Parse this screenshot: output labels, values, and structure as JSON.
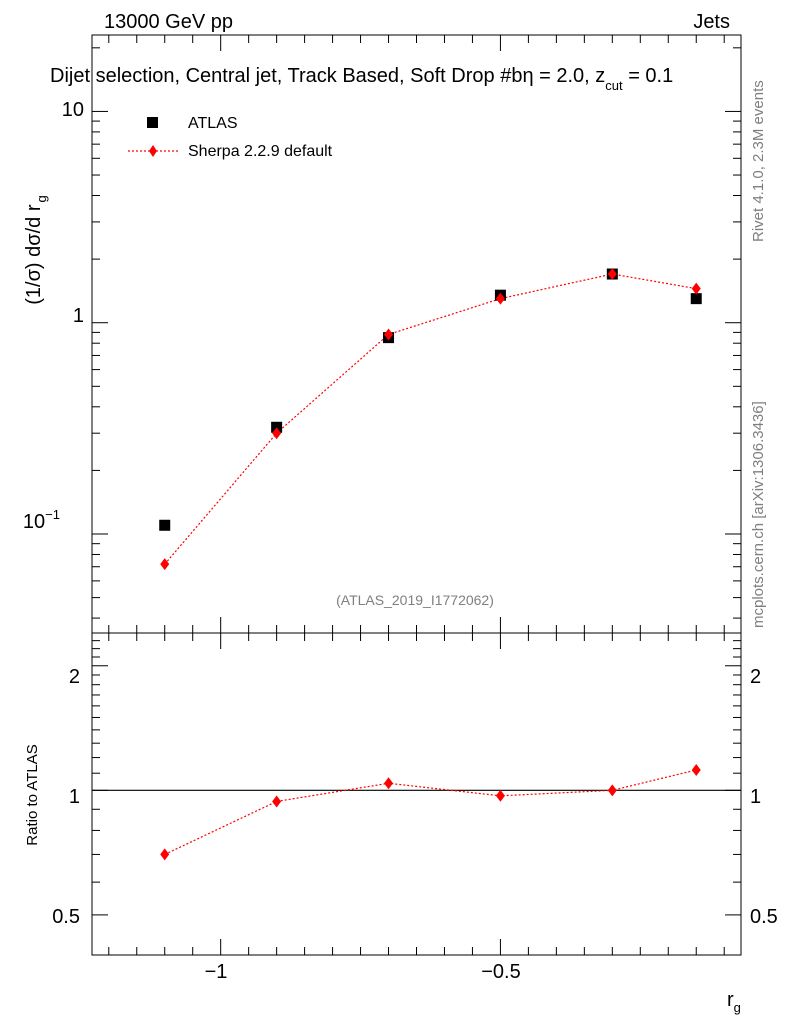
{
  "header": {
    "energy_label": "13000 GeV pp",
    "process_label": "Jets"
  },
  "main_plot": {
    "title": "Dijet selection, Central jet, Track Based, Soft Drop #b",
    "title_suffix_eta": "η = 2.0, z",
    "title_suffix_cut_sub": "cut",
    "title_suffix_value": " = 0.1",
    "ylabel": "(1/σ) dσ/d r",
    "ylabel_sub": "g",
    "ytick_labels": {
      "ten": "10",
      "one": "1",
      "tenth_base": "10",
      "tenth_exp": "−1"
    },
    "analysis_id": "(ATLAS_2019_I1772062)"
  },
  "ratio_plot": {
    "ylabel": "Ratio to ATLAS",
    "ytick_labels": [
      "0.5",
      "1",
      "2"
    ]
  },
  "xaxis": {
    "label": "r",
    "label_sub": "g",
    "tick_labels": [
      "−1",
      "−0.5"
    ]
  },
  "side_text": {
    "rivet": "Rivet 4.1.0,  2.3M events",
    "mcplots": "mcplots.cern.ch [arXiv:1306.3436]"
  },
  "legend": {
    "entries": [
      "ATLAS",
      "Sherpa 2.2.9 default"
    ]
  },
  "chart_data": [
    {
      "type": "scatter",
      "title": "Dijet selection, Central jet, Track Based, Soft Drop #b η = 2.0, z_cut = 0.1",
      "xlabel": "r_g",
      "ylabel": "(1/σ) dσ/d r_g",
      "yscale": "log",
      "xlim": [
        -1.23,
        -0.07
      ],
      "ylim": [
        0.034,
        23
      ],
      "legend_position": "top-left",
      "series": [
        {
          "name": "ATLAS",
          "marker": "square",
          "color": "#000000",
          "x": [
            -1.1,
            -0.9,
            -0.7,
            -0.5,
            -0.3,
            -0.15
          ],
          "y": [
            0.11,
            0.32,
            0.85,
            1.35,
            1.7,
            1.3
          ]
        },
        {
          "name": "Sherpa 2.2.9 default",
          "marker": "diamond",
          "line": "dotted",
          "color": "#ff0000",
          "x": [
            -1.1,
            -0.9,
            -0.7,
            -0.5,
            -0.3,
            -0.15
          ],
          "y": [
            0.072,
            0.3,
            0.88,
            1.3,
            1.7,
            1.45
          ]
        }
      ]
    },
    {
      "type": "scatter",
      "title": "",
      "xlabel": "r_g",
      "ylabel": "Ratio to ATLAS",
      "yscale": "log",
      "xlim": [
        -1.23,
        -0.07
      ],
      "ylim": [
        0.4,
        2.4
      ],
      "reference_line": 1,
      "series": [
        {
          "name": "Sherpa 2.2.9 default",
          "marker": "diamond",
          "line": "dotted",
          "color": "#ff0000",
          "x": [
            -1.1,
            -0.9,
            -0.7,
            -0.5,
            -0.3,
            -0.15
          ],
          "y": [
            0.7,
            0.94,
            1.04,
            0.97,
            1.0,
            1.12
          ],
          "yerr": [
            0.02,
            0.01,
            0.01,
            0.01,
            0.01,
            0.01
          ]
        }
      ]
    }
  ]
}
